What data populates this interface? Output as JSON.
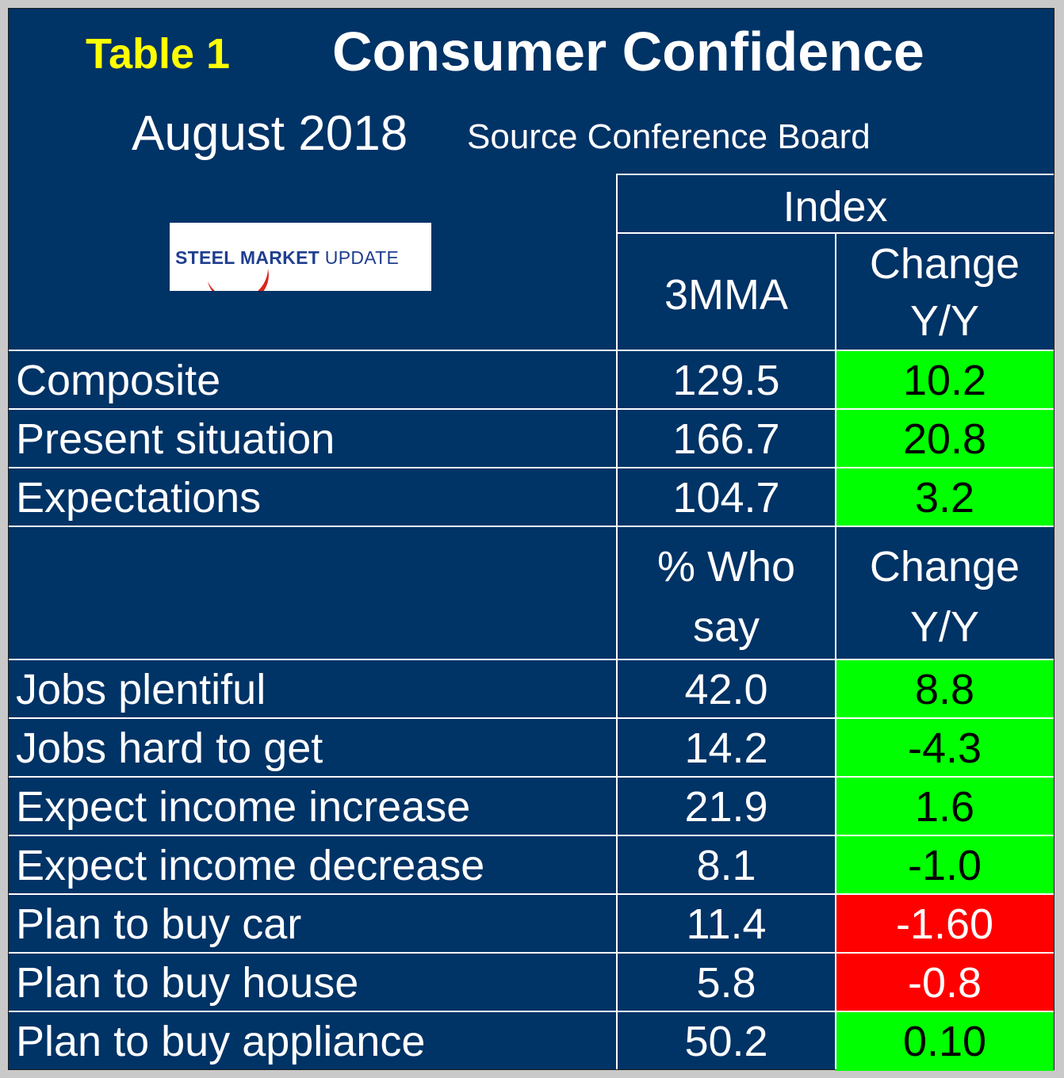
{
  "header": {
    "table_label": "Table 1",
    "title": "Consumer Confidence",
    "period": "August 2018",
    "source": "Source Conference Board"
  },
  "logo": {
    "text_bold": "STEEL MARKET",
    "text_light": "UPDATE",
    "icon": "crescent-swoosh-icon"
  },
  "index_section": {
    "group_header": "Index",
    "col_value_header": "3MMA",
    "col_change_header": [
      "Change",
      "Y/Y"
    ],
    "rows": [
      {
        "label": "Composite",
        "value": "129.5",
        "change": "10.2",
        "status": "positive"
      },
      {
        "label": "Present situation",
        "value": "166.7",
        "change": "20.8",
        "status": "positive"
      },
      {
        "label": "Expectations",
        "value": "104.7",
        "change": "3.2",
        "status": "positive"
      }
    ]
  },
  "survey_section": {
    "col_value_header": [
      "% Who",
      "say"
    ],
    "col_change_header": [
      "Change",
      "Y/Y"
    ],
    "rows": [
      {
        "label": "Jobs plentiful",
        "value": "42.0",
        "change": "8.8",
        "status": "positive"
      },
      {
        "label": "Jobs hard to get",
        "value": "14.2",
        "change": "-4.3",
        "status": "positive"
      },
      {
        "label": "Expect income increase",
        "value": "21.9",
        "change": "1.6",
        "status": "positive"
      },
      {
        "label": "Expect income decrease",
        "value": "8.1",
        "change": "-1.0",
        "status": "positive"
      },
      {
        "label": "Plan to buy car",
        "value": "11.4",
        "change": "-1.60",
        "status": "negative"
      },
      {
        "label": "Plan to buy house",
        "value": "5.8",
        "change": "-0.8",
        "status": "negative"
      },
      {
        "label": "Plan to buy appliance",
        "value": "50.2",
        "change": "0.10",
        "status": "positive"
      }
    ]
  },
  "colors": {
    "background": "#003366",
    "positive": "#00ff00",
    "negative": "#ff0000",
    "table_label": "#ffff00",
    "text": "#ffffff"
  }
}
